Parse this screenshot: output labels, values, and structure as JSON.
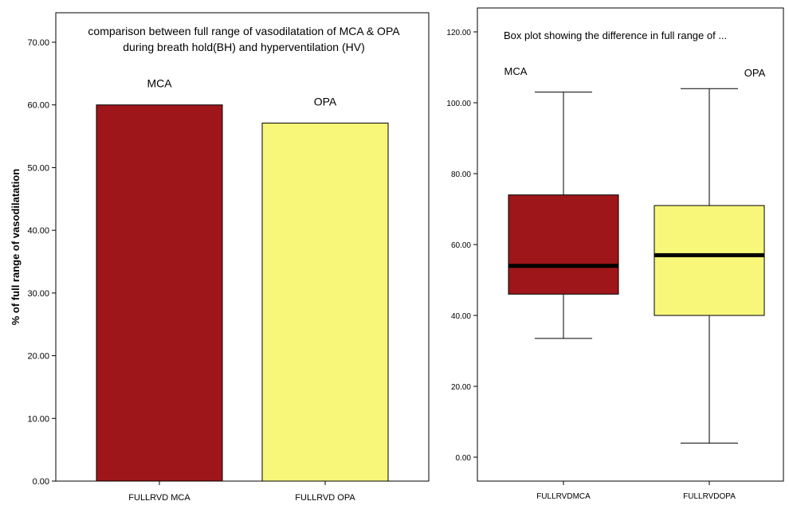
{
  "chart_data": [
    {
      "type": "bar",
      "title_lines": [
        "comparison between full range of vasodilatation of MCA & OPA",
        "during breath hold(BH) and hyperventilation (HV)"
      ],
      "ylabel": "% of full range of vasodilatation",
      "xlabel": "",
      "categories": [
        "FULLRVD MCA",
        "FULLRVD OPA"
      ],
      "values": [
        60.0,
        57.1
      ],
      "colors": [
        "#9e1619",
        "#f9f77a"
      ],
      "annotations": [
        "MCA",
        "OPA"
      ],
      "ylim": [
        0,
        70
      ],
      "yticks": [
        "0.00",
        "10.00",
        "20.00",
        "30.00",
        "40.00",
        "50.00",
        "60.00",
        "70.00"
      ],
      "grid": false
    },
    {
      "type": "box",
      "title": "Box plot showing  the difference in full range of ...",
      "categories": [
        "FULLRVDMCA",
        "FULLRVDOPA"
      ],
      "annotations": [
        "MCA",
        "OPA"
      ],
      "colors": [
        "#9e1619",
        "#f9f77a"
      ],
      "boxes": [
        {
          "min": 33.5,
          "q1": 46.0,
          "median": 54.0,
          "q3": 74.0,
          "max": 103.0
        },
        {
          "min": 4.0,
          "q1": 40.0,
          "median": 57.0,
          "q3": 71.0,
          "max": 104.0
        }
      ],
      "ylim": [
        -6,
        128
      ],
      "yticks": [
        "0.00",
        "20.00",
        "40.00",
        "60.00",
        "80.00",
        "100.00",
        "120.00"
      ],
      "grid": false
    }
  ]
}
